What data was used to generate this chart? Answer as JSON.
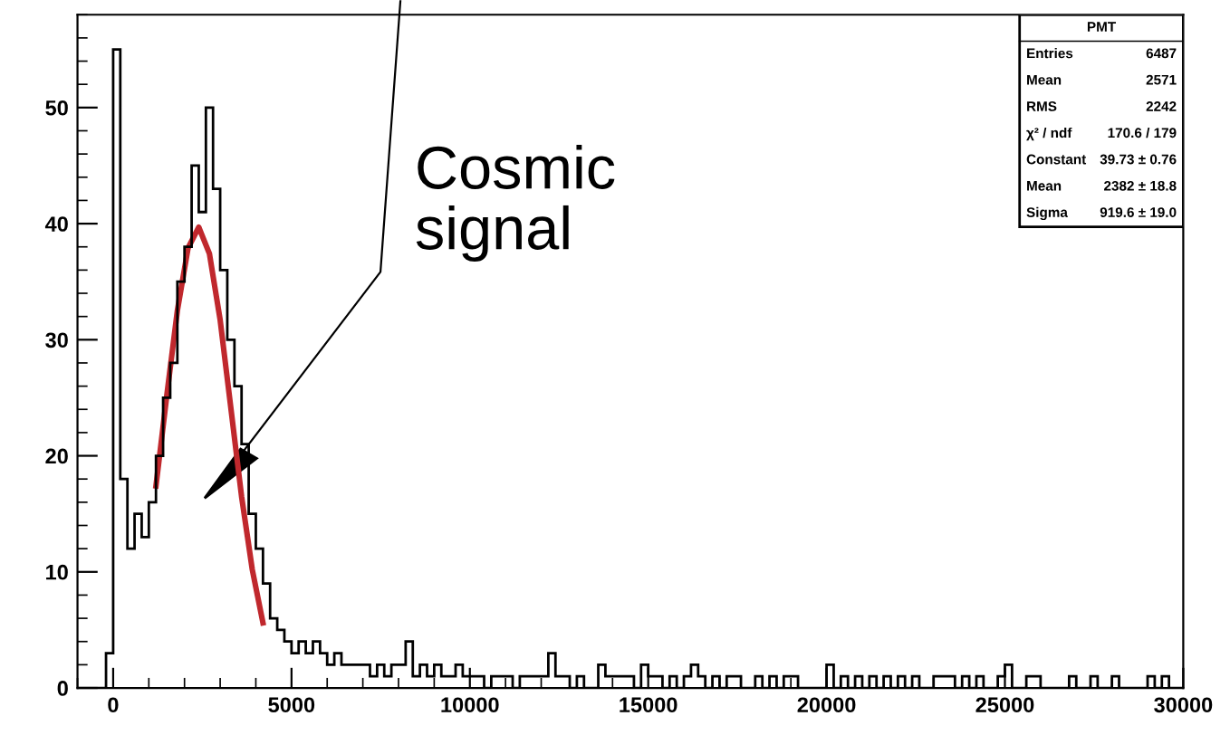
{
  "chart_data": {
    "type": "histogram",
    "color": "#000000",
    "bins": [
      -1000,
      -800,
      -600,
      -400,
      -200,
      0,
      200,
      400,
      600,
      800,
      1000,
      1200,
      1400,
      1600,
      1800,
      2000,
      2200,
      2400,
      2600,
      2800,
      3000,
      3200,
      3400,
      3600,
      3800,
      4000,
      4200,
      4400,
      4600,
      4800,
      5000,
      5200,
      5400,
      5600,
      5800,
      6000,
      6200,
      6400,
      6600,
      6800,
      7000,
      7200,
      7400,
      7600,
      7800,
      8000,
      8200,
      8400,
      8600,
      8800,
      9000,
      9200,
      9400,
      9600,
      9800,
      10000,
      10200,
      10400,
      10600,
      10800,
      11000,
      11200,
      11400,
      11600,
      11800,
      12000,
      12200,
      12400,
      12600,
      12800,
      13000,
      13200,
      13400,
      13600,
      13800,
      14000,
      14200,
      14400,
      14600,
      14800,
      15000,
      15200,
      15400,
      15600,
      15800,
      16000,
      16200,
      16400,
      16600,
      16800,
      17000,
      17200,
      17400,
      17600,
      17800,
      18000,
      18200,
      18400,
      18600,
      18800,
      19000,
      19200,
      19400,
      19600,
      19800,
      20000,
      20200,
      20400,
      20600,
      20800,
      21000,
      21200,
      21400,
      21600,
      21800,
      22000,
      22200,
      22400,
      22600,
      22800,
      23000,
      23200,
      23400,
      23600,
      23800,
      24000,
      24200,
      24400,
      24600,
      24800,
      25000,
      25200,
      25400,
      25600,
      25800,
      26000,
      26200,
      26400,
      26600,
      26800,
      27000,
      27200,
      27400,
      27600,
      27800,
      28000,
      28200,
      28400,
      28600,
      28800,
      29000,
      29200,
      29400,
      29600,
      29800,
      30000
    ],
    "values": [
      0,
      0,
      0,
      0,
      3,
      55,
      18,
      12,
      15,
      13,
      16,
      20,
      25,
      28,
      35,
      38,
      45,
      41,
      50,
      43,
      36,
      30,
      26,
      21,
      15,
      12,
      9,
      6,
      5,
      4,
      3,
      4,
      3,
      4,
      3,
      2,
      3,
      2,
      2,
      2,
      2,
      1,
      2,
      1,
      2,
      2,
      4,
      1,
      2,
      1,
      2,
      1,
      1,
      2,
      1,
      1,
      1,
      0,
      1,
      1,
      1,
      0,
      1,
      1,
      1,
      1,
      3,
      1,
      1,
      0,
      1,
      0,
      0,
      2,
      1,
      1,
      1,
      1,
      0,
      2,
      1,
      1,
      0,
      1,
      0,
      1,
      2,
      1,
      0,
      1,
      0,
      1,
      1,
      0,
      0,
      1,
      0,
      1,
      0,
      1,
      1,
      0,
      0,
      0,
      0,
      2,
      0,
      1,
      0,
      1,
      0,
      1,
      0,
      1,
      0,
      1,
      0,
      1,
      0,
      0,
      1,
      1,
      1,
      0,
      1,
      0,
      1,
      0,
      0,
      1,
      2,
      0,
      0,
      1,
      1,
      0,
      0,
      0,
      0,
      1,
      0,
      0,
      1,
      0,
      0,
      1,
      0,
      0,
      0,
      0,
      1,
      0,
      1,
      0,
      0
    ],
    "series": [
      {
        "type": "line",
        "color": "#c0282d",
        "x": [
          1200,
          1500,
          1800,
          2100,
          2400,
          2700,
          3000,
          3300,
          3600,
          3900,
          4200
        ],
        "values": [
          17.4,
          25.1,
          32.5,
          37.9,
          39.7,
          37.4,
          31.7,
          24.1,
          16.5,
          10.2,
          5.6
        ]
      }
    ],
    "xlim": [
      -1000,
      30000
    ],
    "ylim": [
      0,
      58
    ],
    "xticks": [
      0,
      5000,
      10000,
      15000,
      20000,
      25000,
      30000
    ],
    "yticks": [
      0,
      10,
      20,
      30,
      40,
      50
    ],
    "grid": false,
    "legend": false,
    "annotations": [
      "Cosmic\nsignal",
      "PMT",
      "Entries",
      "6487",
      "Mean",
      "2571",
      "RMS",
      "2242",
      "χ² / ndf",
      "170.6 / 179",
      "Constant",
      "39.73 ± 0.76",
      "Mean",
      "2382 ± 18.8",
      "Sigma",
      "919.6 ± 19.0"
    ]
  }
}
